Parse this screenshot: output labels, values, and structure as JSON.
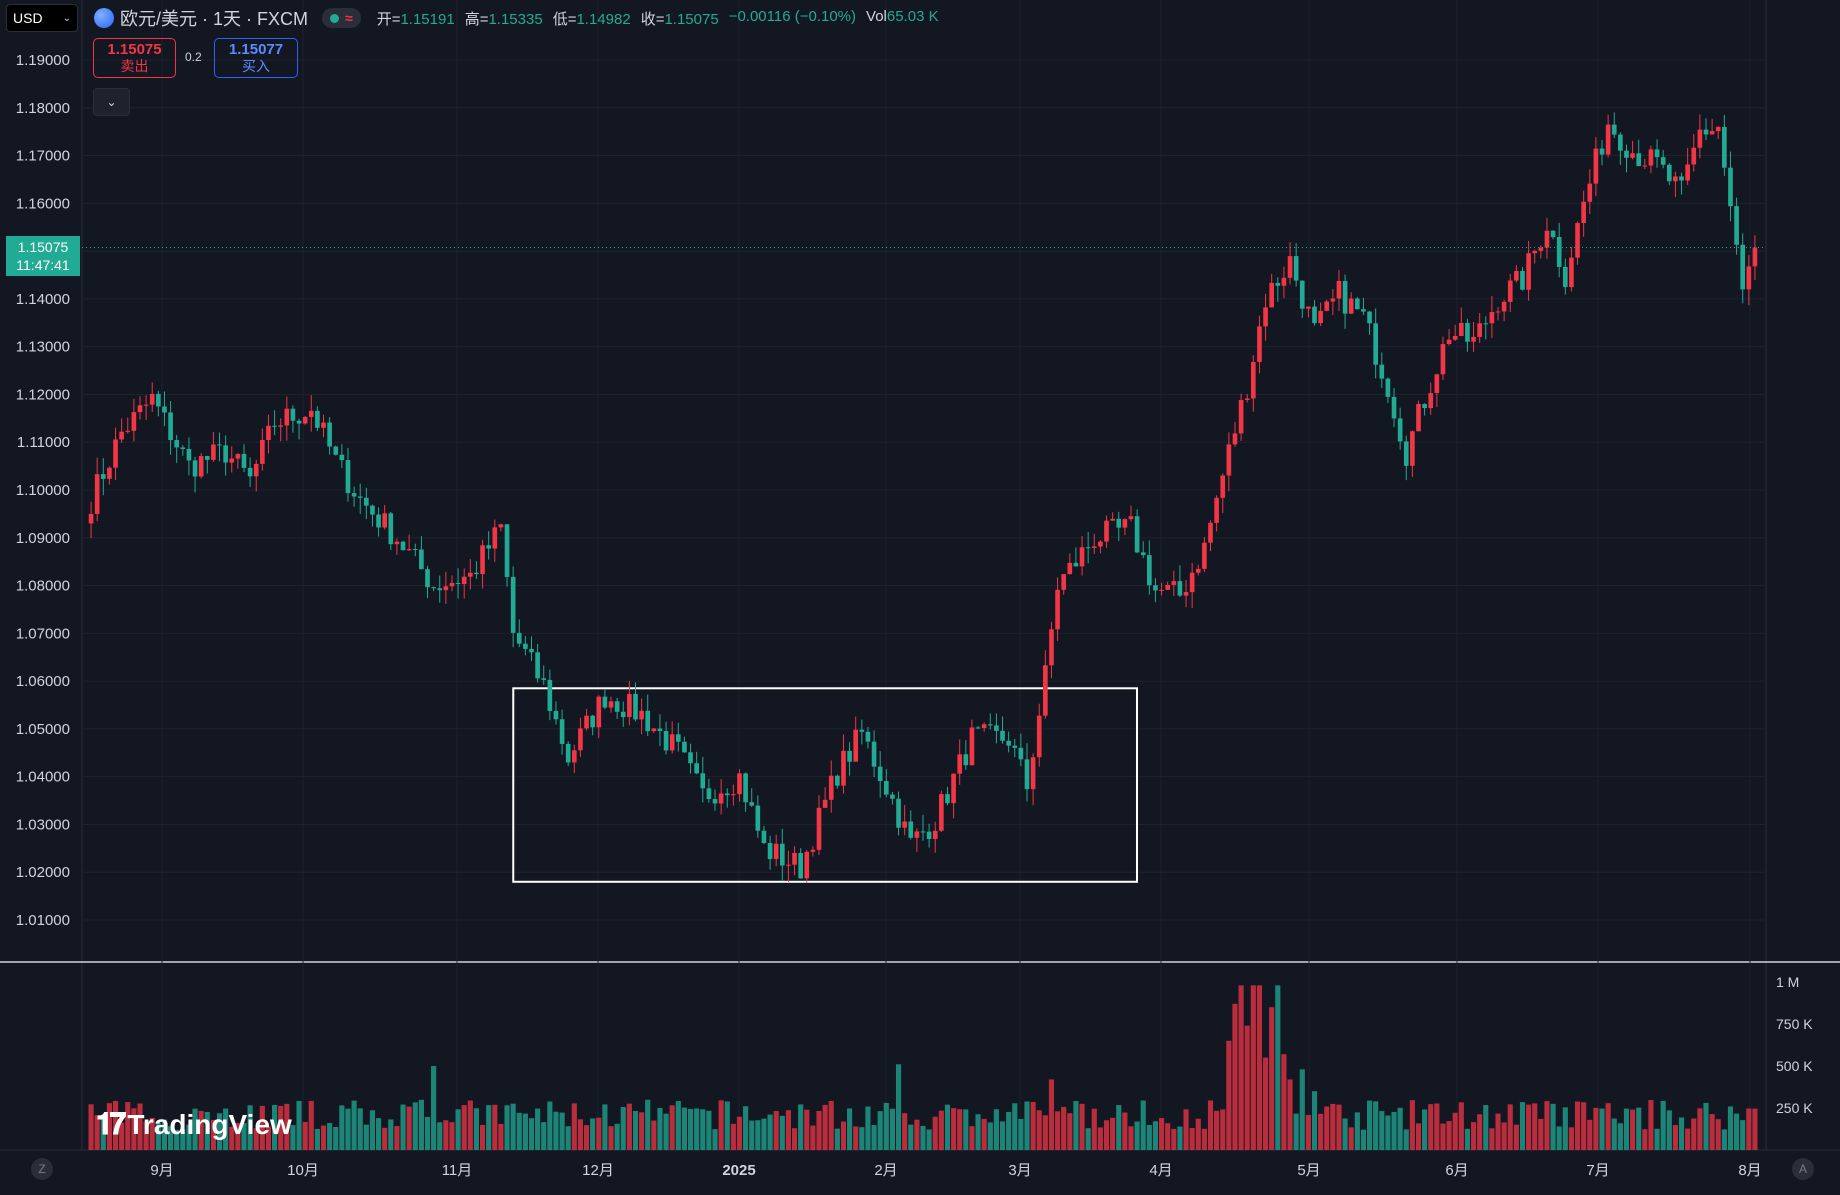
{
  "header": {
    "currency": "USD",
    "symbol_title": "欧元/美元 · 1天 · FXCM",
    "status_icon": "dot-green-icon",
    "ohlc": [
      {
        "label": "开=",
        "value": "1.15191"
      },
      {
        "label": "高=",
        "value": "1.15335"
      },
      {
        "label": "低=",
        "value": "1.14982"
      },
      {
        "label": "收=",
        "value": "1.15075"
      }
    ],
    "change": "−0.00116 (−0.10%)",
    "vol_label": "Vol",
    "vol_value": "65.03 K"
  },
  "trade": {
    "sell_price": "1.15075",
    "sell_label": "卖出",
    "spread": "0.2",
    "buy_price": "1.15077",
    "buy_label": "买入"
  },
  "last_price_tag": {
    "price": "1.15075",
    "countdown": "11:47:41"
  },
  "watermark": "TradingView",
  "footer": {
    "left_button": "Z",
    "right_button": "A"
  },
  "colors": {
    "up": "#f23645",
    "down": "#22ab94",
    "background": "#131722",
    "grid": "#1e222d"
  },
  "chart_data": {
    "type": "candlestick",
    "price_axis_ticks": [
      "1.19000",
      "1.18000",
      "1.17000",
      "1.16000",
      "1.15000",
      "1.14000",
      "1.13000",
      "1.12000",
      "1.11000",
      "1.10000",
      "1.09000",
      "1.08000",
      "1.07000",
      "1.06000",
      "1.05000",
      "1.04000",
      "1.03000",
      "1.02000",
      "1.01000"
    ],
    "volume_axis_ticks": [
      "1 M",
      "750 K",
      "500 K",
      "250 K"
    ],
    "x_axis_labels": [
      "9月",
      "10月",
      "11月",
      "12月",
      "2025",
      "2月",
      "3月",
      "4月",
      "5月",
      "6月",
      "7月",
      "8月"
    ],
    "ylim": [
      1.0,
      1.193
    ],
    "volume_max": 1000000,
    "last_price": 1.15075,
    "anchors": [
      {
        "i": 0,
        "c": 1.098
      },
      {
        "i": 5,
        "c": 1.112
      },
      {
        "i": 10,
        "c": 1.119
      },
      {
        "i": 16,
        "c": 1.105
      },
      {
        "i": 22,
        "c": 1.108
      },
      {
        "i": 26,
        "c": 1.102
      },
      {
        "i": 30,
        "c": 1.114
      },
      {
        "i": 36,
        "c": 1.117
      },
      {
        "i": 40,
        "c": 1.106
      },
      {
        "i": 44,
        "c": 1.098
      },
      {
        "i": 50,
        "c": 1.09
      },
      {
        "i": 56,
        "c": 1.08
      },
      {
        "i": 62,
        "c": 1.082
      },
      {
        "i": 67,
        "c": 1.092
      },
      {
        "i": 69,
        "c": 1.07
      },
      {
        "i": 74,
        "c": 1.059
      },
      {
        "i": 78,
        "c": 1.044
      },
      {
        "i": 84,
        "c": 1.057
      },
      {
        "i": 90,
        "c": 1.053
      },
      {
        "i": 96,
        "c": 1.045
      },
      {
        "i": 100,
        "c": 1.036
      },
      {
        "i": 106,
        "c": 1.04
      },
      {
        "i": 110,
        "c": 1.025
      },
      {
        "i": 116,
        "c": 1.021
      },
      {
        "i": 122,
        "c": 1.041
      },
      {
        "i": 126,
        "c": 1.049
      },
      {
        "i": 130,
        "c": 1.038
      },
      {
        "i": 134,
        "c": 1.026
      },
      {
        "i": 138,
        "c": 1.031
      },
      {
        "i": 144,
        "c": 1.048
      },
      {
        "i": 150,
        "c": 1.048
      },
      {
        "i": 153,
        "c": 1.038
      },
      {
        "i": 156,
        "c": 1.061
      },
      {
        "i": 158,
        "c": 1.08
      },
      {
        "i": 164,
        "c": 1.09
      },
      {
        "i": 170,
        "c": 1.092
      },
      {
        "i": 174,
        "c": 1.079
      },
      {
        "i": 178,
        "c": 1.078
      },
      {
        "i": 182,
        "c": 1.088
      },
      {
        "i": 186,
        "c": 1.108
      },
      {
        "i": 189,
        "c": 1.122
      },
      {
        "i": 192,
        "c": 1.14
      },
      {
        "i": 196,
        "c": 1.148
      },
      {
        "i": 200,
        "c": 1.133
      },
      {
        "i": 204,
        "c": 1.141
      },
      {
        "i": 208,
        "c": 1.136
      },
      {
        "i": 212,
        "c": 1.122
      },
      {
        "i": 215,
        "c": 1.108
      },
      {
        "i": 218,
        "c": 1.119
      },
      {
        "i": 222,
        "c": 1.133
      },
      {
        "i": 226,
        "c": 1.131
      },
      {
        "i": 230,
        "c": 1.14
      },
      {
        "i": 234,
        "c": 1.144
      },
      {
        "i": 238,
        "c": 1.156
      },
      {
        "i": 241,
        "c": 1.145
      },
      {
        "i": 244,
        "c": 1.16
      },
      {
        "i": 248,
        "c": 1.177
      },
      {
        "i": 252,
        "c": 1.171
      },
      {
        "i": 256,
        "c": 1.168
      },
      {
        "i": 260,
        "c": 1.162
      },
      {
        "i": 263,
        "c": 1.175
      },
      {
        "i": 266,
        "c": 1.176
      },
      {
        "i": 268,
        "c": 1.159
      },
      {
        "i": 270,
        "c": 1.141
      },
      {
        "i": 272,
        "c": 1.151
      }
    ],
    "volume_spikes": [
      {
        "i": 56,
        "v": 0.5
      },
      {
        "i": 132,
        "v": 0.51
      },
      {
        "i": 157,
        "v": 0.42
      },
      {
        "i": 186,
        "v": 0.65
      },
      {
        "i": 187,
        "v": 0.87
      },
      {
        "i": 188,
        "v": 0.98
      },
      {
        "i": 189,
        "v": 0.74
      },
      {
        "i": 190,
        "v": 0.98
      },
      {
        "i": 191,
        "v": 0.98
      },
      {
        "i": 192,
        "v": 0.55
      },
      {
        "i": 193,
        "v": 0.85
      },
      {
        "i": 194,
        "v": 0.98
      },
      {
        "i": 195,
        "v": 0.57
      },
      {
        "i": 196,
        "v": 0.42
      },
      {
        "i": 198,
        "v": 0.48
      },
      {
        "i": 200,
        "v": 0.35
      }
    ],
    "annotation_box": {
      "from_index": 70,
      "to_index": 170,
      "price_low": 1.018,
      "price_high": 1.0585
    }
  }
}
